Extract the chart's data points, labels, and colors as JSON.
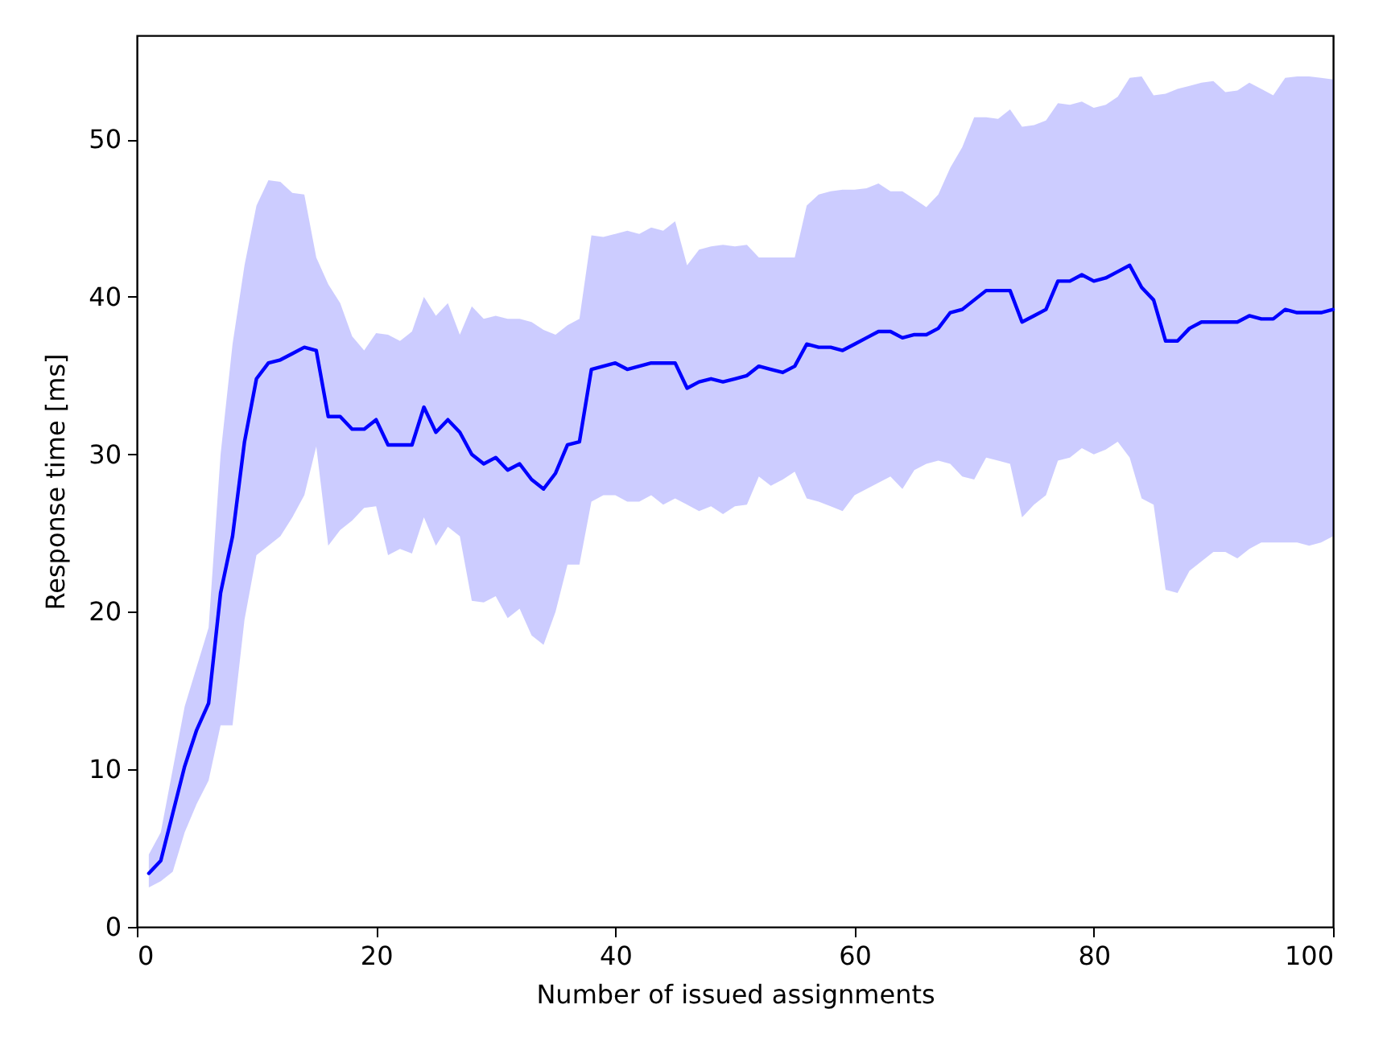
{
  "chart_data": {
    "type": "line",
    "xlabel": "Number of issued assignments",
    "ylabel": "Response time [ms]",
    "x": [
      1,
      2,
      3,
      4,
      5,
      6,
      7,
      8,
      9,
      10,
      11,
      12,
      13,
      14,
      15,
      16,
      17,
      18,
      19,
      20,
      21,
      22,
      23,
      24,
      25,
      26,
      27,
      28,
      29,
      30,
      31,
      32,
      33,
      34,
      35,
      36,
      37,
      38,
      39,
      40,
      41,
      42,
      43,
      44,
      45,
      46,
      47,
      48,
      49,
      50,
      51,
      52,
      53,
      54,
      55,
      56,
      57,
      58,
      59,
      60,
      61,
      62,
      63,
      64,
      65,
      66,
      67,
      68,
      69,
      70,
      71,
      72,
      73,
      74,
      75,
      76,
      77,
      78,
      79,
      80,
      81,
      82,
      83,
      84,
      85,
      86,
      87,
      88,
      89,
      90,
      91,
      92,
      93,
      94,
      95,
      96,
      97,
      98,
      99,
      100
    ],
    "series": [
      {
        "color": "#0000ff",
        "values": [
          3.4,
          4.2,
          7.2,
          10.2,
          12.5,
          14.2,
          21.2,
          24.8,
          30.8,
          34.8,
          35.8,
          36.0,
          36.4,
          36.8,
          36.6,
          32.4,
          32.4,
          31.6,
          31.6,
          32.2,
          30.6,
          30.6,
          30.6,
          33.0,
          31.4,
          32.2,
          31.4,
          30.0,
          29.4,
          29.8,
          29.0,
          29.4,
          28.4,
          27.8,
          28.8,
          30.6,
          30.8,
          35.4,
          35.6,
          35.8,
          35.4,
          35.6,
          35.8,
          35.8,
          35.8,
          34.2,
          34.6,
          34.8,
          34.6,
          34.8,
          35.0,
          35.6,
          35.4,
          35.2,
          35.6,
          37.0,
          36.8,
          36.8,
          36.6,
          37.0,
          37.4,
          37.8,
          37.8,
          37.4,
          37.6,
          37.6,
          38.0,
          39.0,
          39.2,
          39.8,
          40.4,
          40.4,
          40.4,
          38.4,
          38.8,
          39.2,
          41.0,
          41.0,
          41.4,
          41.0,
          41.2,
          41.6,
          42.0,
          40.6,
          39.8,
          37.2,
          37.2,
          38.0,
          38.4,
          38.4,
          38.4,
          38.4,
          38.8,
          38.6,
          38.6,
          39.2,
          39.0,
          39.0,
          39.0,
          39.2
        ],
        "upper": [
          4.6,
          6.0,
          10.0,
          14.0,
          16.5,
          19.0,
          30.0,
          37.0,
          42.0,
          45.8,
          47.4,
          47.3,
          46.6,
          46.5,
          42.5,
          40.8,
          39.6,
          37.5,
          36.6,
          37.7,
          37.6,
          37.2,
          37.8,
          40.0,
          38.8,
          39.6,
          37.6,
          39.4,
          38.6,
          38.8,
          38.6,
          38.6,
          38.4,
          37.9,
          37.6,
          38.2,
          38.6,
          43.9,
          43.8,
          44.0,
          44.2,
          44.0,
          44.4,
          44.2,
          44.8,
          42.0,
          43.0,
          43.2,
          43.3,
          43.2,
          43.3,
          42.5,
          42.5,
          42.5,
          42.5,
          45.8,
          46.5,
          46.7,
          46.8,
          46.8,
          46.9,
          47.2,
          46.7,
          46.7,
          46.2,
          45.7,
          46.5,
          48.2,
          49.5,
          51.4,
          51.4,
          51.3,
          51.9,
          50.8,
          50.9,
          51.2,
          52.3,
          52.2,
          52.4,
          52.0,
          52.2,
          52.7,
          53.9,
          54.0,
          52.8,
          52.9,
          53.2,
          53.4,
          53.6,
          53.7,
          53.0,
          53.1,
          53.6,
          53.2,
          52.8,
          53.9,
          54.0,
          54.0,
          53.9,
          53.8
        ],
        "lower": [
          2.5,
          2.9,
          3.5,
          6.0,
          7.8,
          9.3,
          12.8,
          12.8,
          19.5,
          23.6,
          24.2,
          24.8,
          26.0,
          27.4,
          30.5,
          24.2,
          25.2,
          25.8,
          26.6,
          26.7,
          23.6,
          24.0,
          23.7,
          26.0,
          24.2,
          25.4,
          24.8,
          20.7,
          20.6,
          21.0,
          19.6,
          20.2,
          18.5,
          17.9,
          20.0,
          23.0,
          23.0,
          27.0,
          27.4,
          27.4,
          27.0,
          27.0,
          27.4,
          26.8,
          27.2,
          26.8,
          26.4,
          26.7,
          26.2,
          26.7,
          26.8,
          28.6,
          28.0,
          28.4,
          28.9,
          27.2,
          27.0,
          26.7,
          26.4,
          27.4,
          27.8,
          28.2,
          28.6,
          27.8,
          29.0,
          29.4,
          29.6,
          29.4,
          28.6,
          28.4,
          29.8,
          29.6,
          29.4,
          26.0,
          26.8,
          27.4,
          29.6,
          29.8,
          30.4,
          30.0,
          30.3,
          30.8,
          29.8,
          27.2,
          26.8,
          21.4,
          21.2,
          22.6,
          23.2,
          23.8,
          23.8,
          23.4,
          24.0,
          24.4,
          24.4,
          24.4,
          24.4,
          24.2,
          24.4,
          24.8
        ]
      }
    ],
    "xlim": [
      0,
      100
    ],
    "xticks": [
      0,
      20,
      40,
      60,
      80,
      100
    ],
    "ylim": [
      0,
      56.6
    ],
    "yticks": [
      0,
      10,
      20,
      30,
      40,
      50
    ],
    "grid": false,
    "marker": "none",
    "line_style": "solid"
  }
}
